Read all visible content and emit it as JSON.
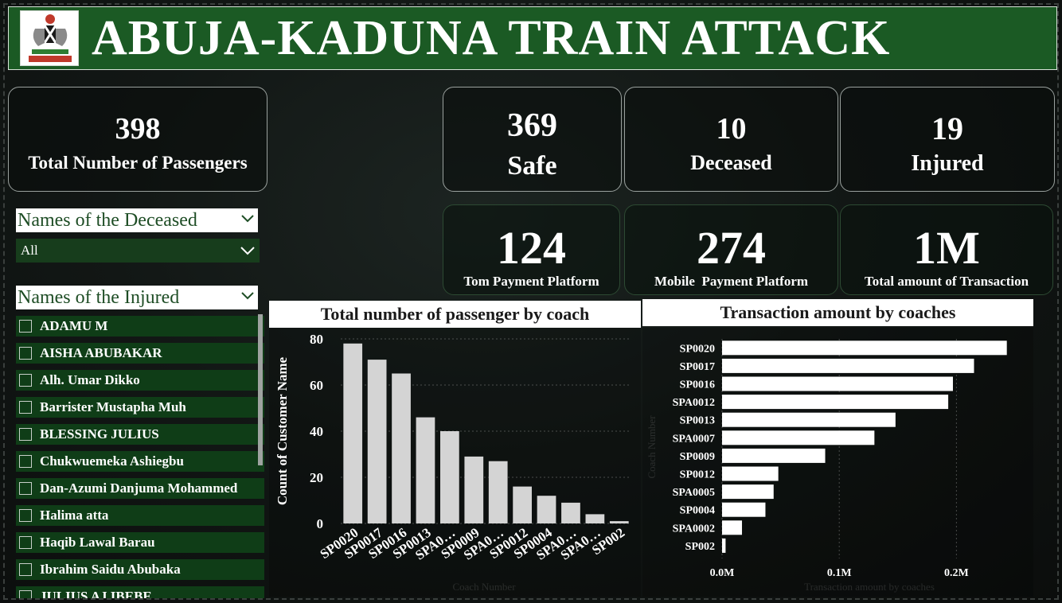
{
  "header": {
    "title": "ABUJA-KADUNA TRAIN ATTACK",
    "logo": "nigeria-coat-of-arms"
  },
  "kpis": {
    "total_passengers": {
      "value": "398",
      "label": "Total Number of Passengers"
    },
    "safe": {
      "value": "369",
      "label": "Safe"
    },
    "deceased": {
      "value": "10",
      "label": "Deceased"
    },
    "injured": {
      "value": "19",
      "label": "Injured"
    },
    "tom_platform": {
      "value": "124",
      "label": "Tom Payment Platform"
    },
    "mobile_platform": {
      "value": "274",
      "label": "Mobile  Payment Platform"
    },
    "total_transaction": {
      "value": "1M",
      "label": "Total amount of Transaction"
    }
  },
  "slicers": {
    "deceased": {
      "title": "Names of the Deceased",
      "selected": "All"
    },
    "injured": {
      "title": "Names of the Injured",
      "items": [
        "ADAMU M",
        "AISHA ABUBAKAR",
        "Alh. Umar Dikko",
        "Barrister Mustapha Muh",
        "BLESSING JULIUS",
        "Chukwuemeka Ashiegbu",
        "Dan-Azumi Danjuma Mohammed",
        "Halima atta",
        "Haqib Lawal Barau",
        "Ibrahim Saidu Abubaka",
        "JULIUS AJ IBEBE"
      ]
    }
  },
  "colors": {
    "banner": "#1b5a24",
    "bar": "#d4d4d4",
    "slicer_bg": "#0f3d17"
  },
  "chart_data": [
    {
      "type": "bar",
      "title": "Total number of passenger by coach",
      "xlabel": "Coach Number",
      "ylabel": "Count of Customer Name",
      "ylim": [
        0,
        80
      ],
      "yticks": [
        0,
        20,
        40,
        60,
        80
      ],
      "categories": [
        "SP0020",
        "SP0017",
        "SP0016",
        "SP0013",
        "SPA0...",
        "SP0009",
        "SPA0...",
        "SP0012",
        "SP0004",
        "SPA0...",
        "SPA0...",
        "SP002"
      ],
      "tick_labels_shown": [
        "SP0020",
        "SP0017",
        "SP0016",
        "SP0013",
        "SPA0…",
        "SP0009",
        "SPA0…",
        "SP0012",
        "SP0004",
        "SPA0…",
        "SPA0…",
        "SP002"
      ],
      "values": [
        78,
        71,
        65,
        46,
        40,
        29,
        27,
        16,
        12,
        9,
        4,
        1
      ],
      "grid": true
    },
    {
      "type": "bar",
      "orientation": "horizontal",
      "title": "Transaction amount by coaches",
      "xlabel": "Transaction amount by coaches",
      "ylabel": "Coach Number",
      "categories": [
        "SP0020",
        "SP0017",
        "SP0016",
        "SPA0012",
        "SP0013",
        "SPA0007",
        "SP0009",
        "SP0012",
        "SPA0005",
        "SP0004",
        "SPA0002",
        "SP002"
      ],
      "values": [
        243000,
        215000,
        197000,
        193000,
        148000,
        130000,
        88000,
        48000,
        44000,
        37000,
        17000,
        3000
      ],
      "xlim": [
        0,
        250000
      ],
      "xticks": [
        "0.0M",
        "0.1M",
        "0.2M"
      ],
      "grid": true
    }
  ]
}
